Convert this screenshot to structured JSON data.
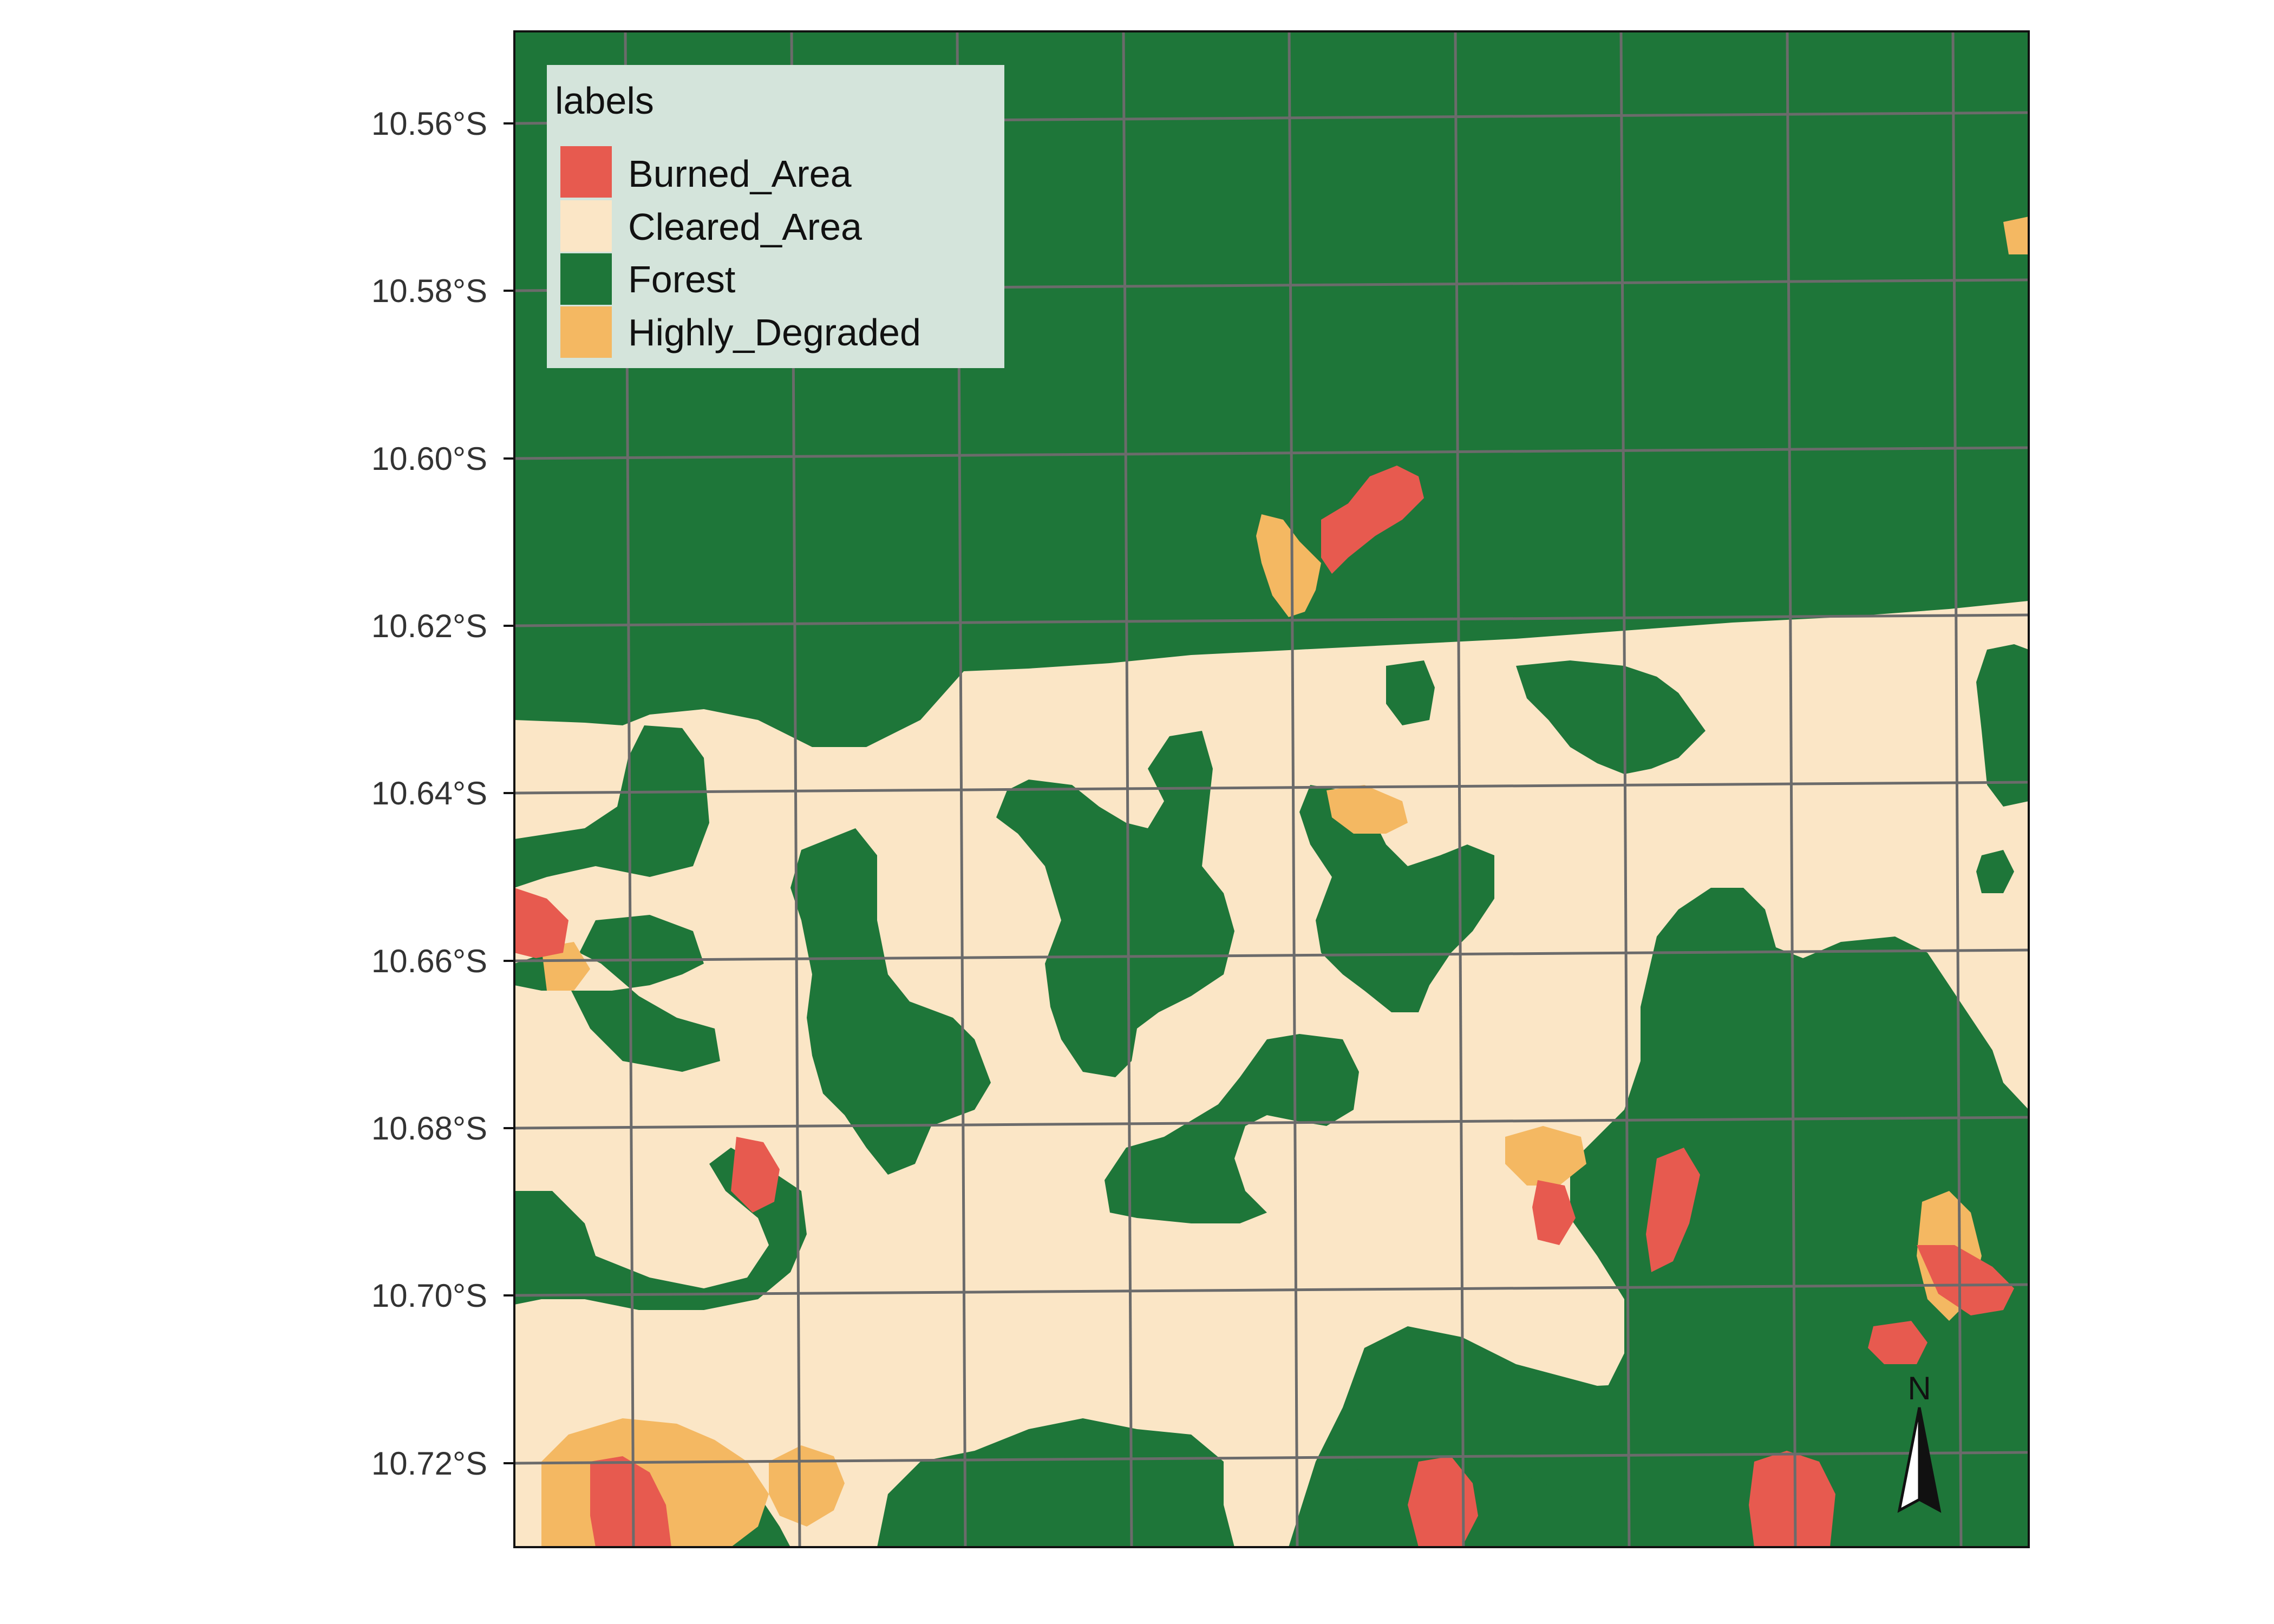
{
  "colors": {
    "burned_area": "#e75a4f",
    "cleared_area": "#fbe6c6",
    "forest": "#1e7639",
    "highly_degraded": "#f4b862",
    "grid": "#6b6b6b",
    "frame": "#111111",
    "legend_bg": "#d4e4db"
  },
  "legend": {
    "title": "labels",
    "items": [
      {
        "key": "burned_area",
        "label": "Burned_Area"
      },
      {
        "key": "cleared_area",
        "label": "Cleared_Area"
      },
      {
        "key": "forest",
        "label": "Forest"
      },
      {
        "key": "highly_degraded",
        "label": "Highly_Degraded"
      }
    ]
  },
  "axis": {
    "y_ticks": [
      "10.56°S",
      "10.58°S",
      "10.60°S",
      "10.62°S",
      "10.64°S",
      "10.66°S",
      "10.68°S",
      "10.70°S",
      "10.72°S"
    ]
  },
  "north_arrow": {
    "label": "N",
    "icon": "north-arrow-icon"
  }
}
